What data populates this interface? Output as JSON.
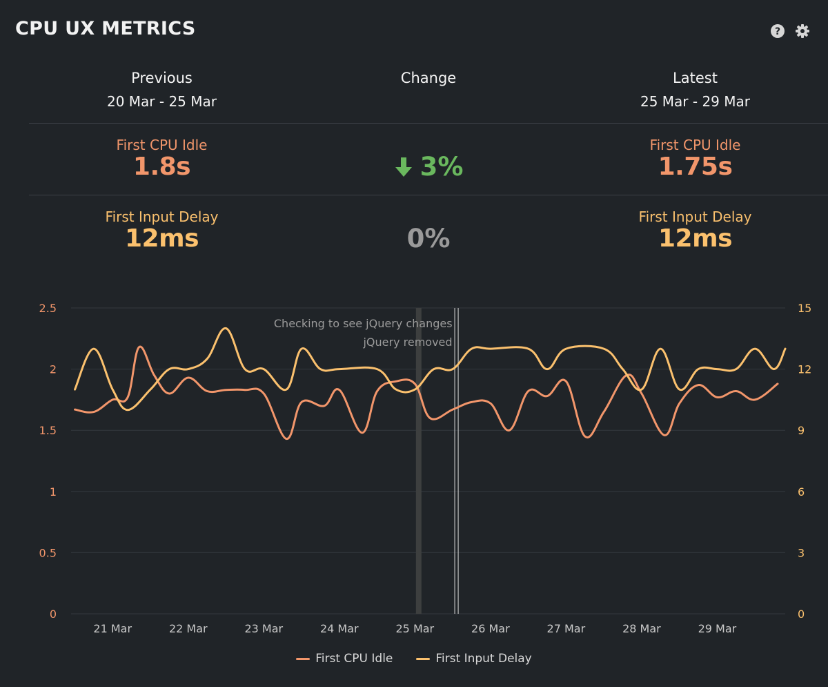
{
  "panel": {
    "title": "CPU UX METRICS",
    "help_icon": "question-circle-icon",
    "settings_icon": "gear-icon"
  },
  "summary": {
    "previous": {
      "label": "Previous",
      "range": "20 Mar - 25 Mar"
    },
    "change": {
      "label": "Change"
    },
    "latest": {
      "label": "Latest",
      "range": "25 Mar - 29 Mar"
    },
    "metrics": [
      {
        "name": "First CPU Idle",
        "previous": "1.8s",
        "latest": "1.75s",
        "change": "3%",
        "change_direction": "down",
        "color": "#f2966b",
        "change_color": "#6ab85e"
      },
      {
        "name": "First Input Delay",
        "previous": "12ms",
        "latest": "12ms",
        "change": "0%",
        "change_direction": "none",
        "color": "#fbc16e",
        "change_color": "#9a9a9a"
      }
    ]
  },
  "chart_data": {
    "type": "line",
    "x_ticks": [
      "21 Mar",
      "22 Mar",
      "23 Mar",
      "24 Mar",
      "25 Mar",
      "26 Mar",
      "27 Mar",
      "28 Mar",
      "29 Mar"
    ],
    "x_range": [
      20.45,
      29.9
    ],
    "y_left": {
      "ticks": [
        "0",
        "0.5",
        "1",
        "1.5",
        "2",
        "2.5"
      ],
      "range": [
        0,
        2.5
      ],
      "color": "#f2966b"
    },
    "y_right": {
      "ticks": [
        "0",
        "3",
        "6",
        "9",
        "12",
        "15"
      ],
      "range": [
        0,
        15
      ],
      "color": "#fbc16e"
    },
    "grid": true,
    "annotations": [
      {
        "x": 25.05,
        "label": "Checking to see jQuery changes",
        "style": "band"
      },
      {
        "x": 25.55,
        "label": "jQuery removed",
        "style": "double-line"
      }
    ],
    "series": [
      {
        "name": "First CPU Idle",
        "axis": "left",
        "color": "#f2966b",
        "x": [
          20.5,
          20.75,
          21.0,
          21.2,
          21.35,
          21.55,
          21.75,
          22.0,
          22.25,
          22.5,
          22.75,
          23.0,
          23.3,
          23.5,
          23.8,
          24.0,
          24.3,
          24.5,
          24.75,
          25.0,
          25.2,
          25.5,
          25.75,
          26.0,
          26.25,
          26.5,
          26.75,
          27.0,
          27.25,
          27.5,
          27.8,
          28.0,
          28.3,
          28.5,
          28.75,
          29.0,
          29.25,
          29.5,
          29.8
        ],
        "y": [
          1.67,
          1.65,
          1.75,
          1.77,
          2.18,
          1.95,
          1.8,
          1.93,
          1.82,
          1.83,
          1.83,
          1.8,
          1.43,
          1.73,
          1.7,
          1.83,
          1.48,
          1.82,
          1.9,
          1.88,
          1.6,
          1.67,
          1.73,
          1.72,
          1.5,
          1.82,
          1.78,
          1.9,
          1.45,
          1.65,
          1.95,
          1.8,
          1.46,
          1.72,
          1.87,
          1.77,
          1.82,
          1.75,
          1.88
        ]
      },
      {
        "name": "First Input Delay",
        "axis": "right",
        "color": "#fbc16e",
        "x": [
          20.5,
          20.75,
          21.0,
          21.2,
          21.5,
          21.75,
          22.0,
          22.25,
          22.5,
          22.75,
          23.0,
          23.3,
          23.5,
          23.75,
          24.0,
          24.5,
          24.75,
          25.0,
          25.25,
          25.5,
          25.75,
          26.0,
          26.5,
          26.75,
          27.0,
          27.5,
          27.75,
          28.0,
          28.25,
          28.5,
          28.75,
          29.0,
          29.25,
          29.5,
          29.75,
          29.9
        ],
        "y": [
          11,
          13,
          11,
          10,
          11,
          12,
          12,
          12.5,
          14,
          12,
          12,
          11,
          13,
          12,
          12,
          12,
          11,
          11,
          12,
          12,
          13,
          13,
          13,
          12,
          13,
          13,
          12,
          11,
          13,
          11,
          12,
          12,
          12,
          13,
          12,
          13
        ]
      }
    ],
    "legend": [
      "First CPU Idle",
      "First Input Delay"
    ],
    "legend_position": "bottom-center"
  }
}
